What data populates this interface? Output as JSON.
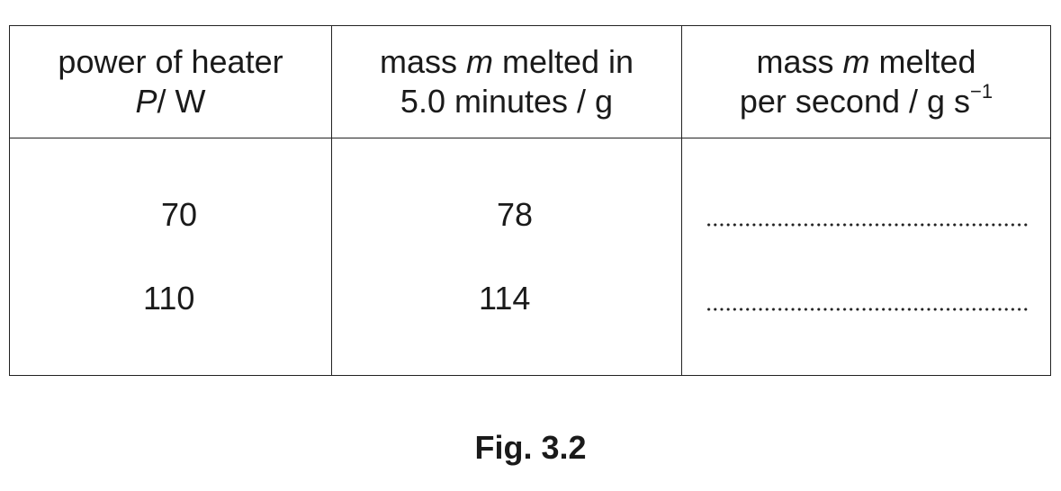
{
  "table": {
    "headers": {
      "power": {
        "line1": "power of heater",
        "line2_symbol": "P",
        "line2_unit": "/ W"
      },
      "mass": {
        "line1_pre": "mass ",
        "line1_symbol": "m",
        "line1_post": " melted in",
        "line2": "5.0 minutes / g"
      },
      "rate": {
        "line1_pre": "mass ",
        "line1_symbol": "m",
        "line1_post": " melted",
        "line2": "per second / g s",
        "line2_sup": "−1"
      }
    },
    "rows": [
      {
        "power": "70",
        "mass": "78"
      },
      {
        "power": "110",
        "mass": "114"
      }
    ]
  },
  "caption": "Fig. 3.2"
}
